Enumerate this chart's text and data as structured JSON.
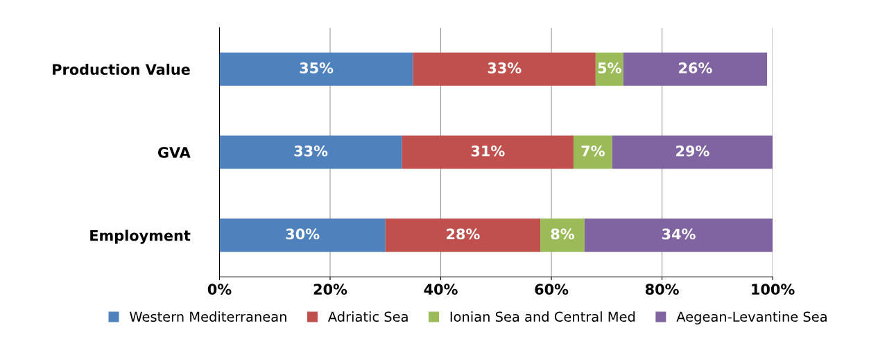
{
  "chart_data": {
    "type": "bar",
    "orientation": "horizontal",
    "stacked": true,
    "categories": [
      "Production Value",
      "GVA",
      "Employment"
    ],
    "series": [
      {
        "name": "Western Mediterranean",
        "color": "#4f81bd",
        "values": [
          35,
          33,
          30
        ],
        "value_labels": [
          "35%",
          "33%",
          "30%"
        ]
      },
      {
        "name": "Adriatic Sea",
        "color": "#c0504d",
        "values": [
          33,
          31,
          28
        ],
        "value_labels": [
          "33%",
          "31%",
          "28%"
        ]
      },
      {
        "name": "Ionian Sea and Central Med",
        "color": "#9bbb59",
        "values": [
          5,
          7,
          8
        ],
        "value_labels": [
          "5%",
          "7%",
          "8%"
        ]
      },
      {
        "name": "Aegean-Levantine Sea",
        "color": "#8064a2",
        "values": [
          26,
          29,
          34
        ],
        "value_labels": [
          "26%",
          "29%",
          "34%"
        ]
      }
    ],
    "xlim": [
      0,
      100
    ],
    "xticks": [
      {
        "value": 0,
        "label": "0%"
      },
      {
        "value": 20,
        "label": "20%"
      },
      {
        "value": 40,
        "label": "40%"
      },
      {
        "value": 60,
        "label": "60%"
      },
      {
        "value": 80,
        "label": "80%"
      },
      {
        "value": 100,
        "label": "100%"
      }
    ],
    "grid": "x",
    "legend": "bottom"
  }
}
